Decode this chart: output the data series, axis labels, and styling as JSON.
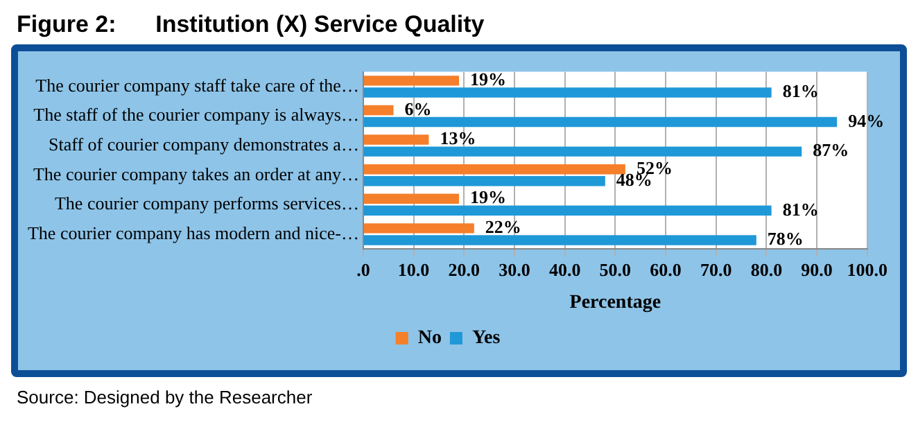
{
  "chart_data": {
    "type": "bar",
    "orientation": "horizontal",
    "title": "Figure 2:      Institution (X) Service Quality",
    "categories": [
      "The courier company staff take care of the…",
      "The staff of the courier company is always…",
      "Staff of courier company demonstrates a…",
      "The courier company takes an order at any…",
      "The courier company performs services…",
      "The courier company has modern and nice-…"
    ],
    "series": [
      {
        "name": "No",
        "color": "#f57f2a",
        "values": [
          19,
          6,
          13,
          52,
          19,
          22
        ],
        "value_labels": [
          "19%",
          "6%",
          "13%",
          "52%",
          "19%",
          "22%"
        ]
      },
      {
        "name": "Yes",
        "color": "#1f98d8",
        "values": [
          81,
          94,
          87,
          48,
          81,
          78
        ],
        "value_labels": [
          "81%",
          "94%",
          "87%",
          "48%",
          "81%",
          "78%"
        ]
      }
    ],
    "xlabel": "Percentage",
    "xlim": [
      0,
      100
    ],
    "xticks": [
      {
        "value": 0,
        "label": ".0"
      },
      {
        "value": 10,
        "label": "10.0"
      },
      {
        "value": 20,
        "label": "20.0"
      },
      {
        "value": 30,
        "label": "30.0"
      },
      {
        "value": 40,
        "label": "40.0"
      },
      {
        "value": 50,
        "label": "50.0"
      },
      {
        "value": 60,
        "label": "60.0"
      },
      {
        "value": 70,
        "label": "70.0"
      },
      {
        "value": 80,
        "label": "80.0"
      },
      {
        "value": 90,
        "label": "90.0"
      },
      {
        "value": 100,
        "label": "100.0"
      }
    ],
    "grid": "x",
    "legend": "bottom",
    "annotations": [
      "Source: Designed by the Researcher"
    ]
  }
}
